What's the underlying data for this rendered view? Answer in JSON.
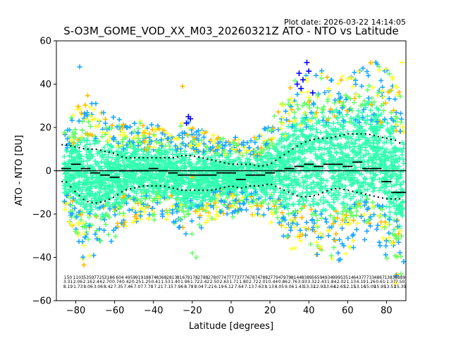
{
  "chart_data": {
    "type": "scatter",
    "title": "S-O3M_GOME_VOD_XX_M03_20260321Z ATO - NTO vs Latitude",
    "plot_date": "Plot date: 2026-03-22 14:14:05",
    "xlabel": "Latitude [degrees]",
    "ylabel": "ATO - NTO [DU]",
    "xlim": [
      -90,
      90
    ],
    "ylim": [
      -60,
      60
    ],
    "xticks": [
      -80,
      -60,
      -40,
      -20,
      0,
      20,
      40,
      60,
      80
    ],
    "yticks": [
      -60,
      -40,
      -20,
      0,
      20,
      40,
      60
    ],
    "marker": "+",
    "zero_line": 0,
    "colors": {
      "dense": "#33ffb0",
      "mid": "#66ff66",
      "cyan": "#1aa9ff",
      "yellow": "#ffff33",
      "orange": "#ffbb00",
      "blue": "#0000ff",
      "mean": "#000000"
    },
    "bin_centers": [
      -85,
      -80,
      -75,
      -70,
      -65,
      -60,
      -55,
      -50,
      -45,
      -40,
      -35,
      -30,
      -25,
      -20,
      -15,
      -10,
      -5,
      0,
      5,
      10,
      15,
      20,
      25,
      30,
      35,
      40,
      45,
      50,
      55,
      60,
      65,
      70,
      75,
      80,
      85,
      88
    ],
    "mean_line": [
      1,
      3,
      1,
      -1,
      -2,
      -3,
      0,
      0,
      0,
      1,
      0,
      -1,
      -2,
      -2,
      -2,
      -2,
      -1,
      -1,
      -4,
      -2,
      -2,
      -1,
      0,
      1,
      2,
      3,
      2,
      3,
      3,
      2,
      4,
      1,
      1,
      -5,
      -10,
      -10
    ],
    "upper_sd_line": [
      12,
      11,
      10,
      10,
      9,
      8,
      6,
      6,
      6,
      6,
      6,
      6,
      7,
      7,
      6,
      5,
      4,
      3,
      3,
      3,
      2,
      3,
      6,
      9,
      12,
      14,
      15,
      15,
      16,
      17,
      17,
      17,
      16,
      15,
      14,
      12
    ],
    "lower_sd_line": [
      -5,
      -10,
      -14,
      -15,
      -14,
      -12,
      -9,
      -8,
      -7,
      -7,
      -7,
      -8,
      -9,
      -9,
      -9,
      -9,
      -8,
      -7,
      -8,
      -7,
      -7,
      -6,
      -8,
      -10,
      -12,
      -12,
      -11,
      -9,
      -8,
      -9,
      -10,
      -11,
      -12,
      -13,
      -13,
      -13
    ],
    "spread_upper": [
      20,
      28,
      35,
      30,
      26,
      25,
      22,
      22,
      22,
      20,
      20,
      20,
      22,
      21,
      18,
      16,
      15,
      16,
      14,
      14,
      16,
      22,
      30,
      40,
      45,
      44,
      45,
      48,
      50,
      46,
      45,
      50,
      50,
      45,
      40,
      30
    ],
    "spread_lower": [
      -20,
      -30,
      -45,
      -40,
      -34,
      -30,
      -25,
      -23,
      -22,
      -22,
      -22,
      -24,
      -28,
      -30,
      -26,
      -22,
      -20,
      -20,
      -22,
      -20,
      -22,
      -24,
      -28,
      -35,
      -35,
      -33,
      -38,
      -38,
      -40,
      -36,
      -33,
      -30,
      -30,
      -40,
      -50,
      -45
    ],
    "count_row1": [
      "150",
      "1103",
      "5359",
      "7725",
      "3186",
      "604",
      "4959",
      "9191",
      "9874",
      "8368",
      "2813",
      "8167",
      "9178",
      "2788",
      "2780",
      "7747",
      "7773",
      "7776",
      "7874",
      "7882",
      "7794",
      "7979",
      "8144",
      "8389",
      "5659",
      "4934",
      "9995",
      "3514",
      "6437",
      "7733",
      "4867",
      "1383",
      "6889"
    ],
    "count_row2": [
      "3.31",
      "2.06",
      "2.16",
      "2.44",
      "2.70",
      "0.74",
      "0.42",
      "0.25",
      "1.25",
      "0.41",
      "1.53",
      "1.40",
      "1.96",
      "1.72",
      "2.42",
      "2.50",
      "2.63",
      "1.71",
      "1.80",
      "2.72",
      "2.01",
      "0.44",
      "0.86",
      "2.76",
      "3.93",
      "3.32",
      "2.43",
      "1.84",
      "2.02",
      "1.13",
      "4.19",
      "1.26",
      "0.61",
      "-1.37",
      "7.50"
    ],
    "count_row3": [
      "8.19",
      "1.73",
      "8.06",
      "3.06",
      "8.42",
      "7.35",
      "7.46",
      "7.07",
      "7.78",
      "7.21",
      "7.15",
      "7.96",
      "8.78",
      "8.04",
      "7.21",
      "6.19",
      "6.12",
      "7.64",
      "7.13",
      "7.63",
      "8.13",
      "8.05",
      "9.06",
      "1.43",
      "13.32",
      "12.93",
      "13.64",
      "12.65",
      "12.15",
      "13.16",
      "15.09",
      "15.95",
      "13.51",
      "15.39"
    ]
  }
}
